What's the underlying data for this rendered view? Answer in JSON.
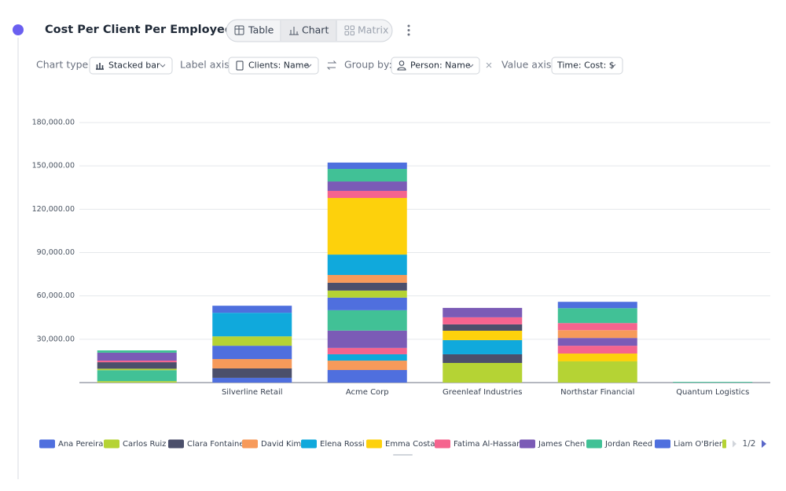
{
  "header": {
    "title": "Cost Per Client Per Employee"
  },
  "view_tabs": [
    "Table",
    "Chart",
    "Matrix"
  ],
  "toolbar": [
    {
      "label": "Chart type:",
      "value": "Stacked bar"
    },
    {
      "label": "Label axis:",
      "value": "Clients: Name"
    },
    {
      "label": "Group by:",
      "value": "Person: Name"
    },
    {
      "label": "Value axis:",
      "value": "Time: Cost: $"
    }
  ],
  "chart_data": {
    "type": "stacked_bar",
    "categories": [
      null,
      "Silverline Retail",
      "Acme Corp",
      "Greenleaf Industries",
      "Northstar Financial",
      "Quantum Logistics"
    ],
    "ylim": [
      0,
      180000
    ],
    "yticks": [
      {
        "value": 30000,
        "label": "30,000.00"
      },
      {
        "value": 60000,
        "label": "60,000.00"
      },
      {
        "value": 90000,
        "label": "90,000.00"
      },
      {
        "value": 120000,
        "label": "120,000.00"
      },
      {
        "value": 150000,
        "label": "150,000.00"
      },
      {
        "value": 180000,
        "label": "180,000.00"
      }
    ],
    "grid": true,
    "legend_page": "1/2",
    "series": [
      {
        "name": "Ana Pereira",
        "color": "#4f6fde",
        "values": [
          0,
          9200,
          8700,
          0,
          0,
          0
        ]
      },
      {
        "name": "Carlos Ruiz",
        "color": "#b5d334",
        "values": [
          1000,
          6500,
          4900,
          0,
          0,
          0
        ]
      },
      {
        "name": "Clara Fontaine",
        "color": "#4b4f6b",
        "values": [
          4500,
          0,
          5400,
          4400,
          0,
          0
        ]
      },
      {
        "name": "David Kim",
        "color": "#f79a5a",
        "values": [
          0,
          0,
          5400,
          0,
          5400,
          0
        ]
      },
      {
        "name": "Elena Rossi",
        "color": "#10a9dc",
        "values": [
          0,
          16300,
          14100,
          0,
          0,
          0
        ]
      },
      {
        "name": "Emma Costa",
        "color": "#fdd10c",
        "values": [
          0,
          0,
          39200,
          0,
          0,
          0
        ]
      },
      {
        "name": "Fatima Al-Hassan",
        "color": "#f5648e",
        "values": [
          1100,
          0,
          4900,
          4900,
          4900,
          0
        ]
      },
      {
        "name": "James Chen",
        "color": "#7b5bb6",
        "values": [
          5500,
          0,
          6500,
          6500,
          0,
          0
        ]
      },
      {
        "name": "Jordan Reed",
        "color": "#41c196",
        "values": [
          1600,
          0,
          8700,
          0,
          10300,
          500
        ]
      },
      {
        "name": "Liam O'Brien",
        "color": "#4e6fde",
        "values": [
          0,
          4900,
          4400,
          0,
          4400,
          0
        ]
      },
      {
        "color": "#b5d334",
        "values": [
          1000,
          0,
          0,
          13600,
          14700,
          0
        ]
      },
      {
        "color": "#4f6fde",
        "values": [
          0,
          3300,
          8700,
          0,
          0,
          0
        ]
      },
      {
        "color": "#4b4f6b",
        "values": [
          0,
          6500,
          0,
          6000,
          0,
          0
        ]
      },
      {
        "color": "#f79a5a",
        "values": [
          0,
          6500,
          6500,
          0,
          0,
          0
        ]
      },
      {
        "color": "#10a9dc",
        "values": [
          0,
          0,
          4400,
          9800,
          0,
          0
        ]
      },
      {
        "color": "#fdd10c",
        "values": [
          0,
          0,
          0,
          6500,
          5400,
          0
        ]
      },
      {
        "color": "#f5648e",
        "values": [
          0,
          0,
          4400,
          0,
          5400,
          0
        ]
      },
      {
        "color": "#7b5bb6",
        "values": [
          0,
          0,
          12000,
          0,
          5400,
          0
        ]
      },
      {
        "color": "#41c196",
        "values": [
          7600,
          0,
          14100,
          0,
          0,
          0
        ]
      }
    ]
  }
}
